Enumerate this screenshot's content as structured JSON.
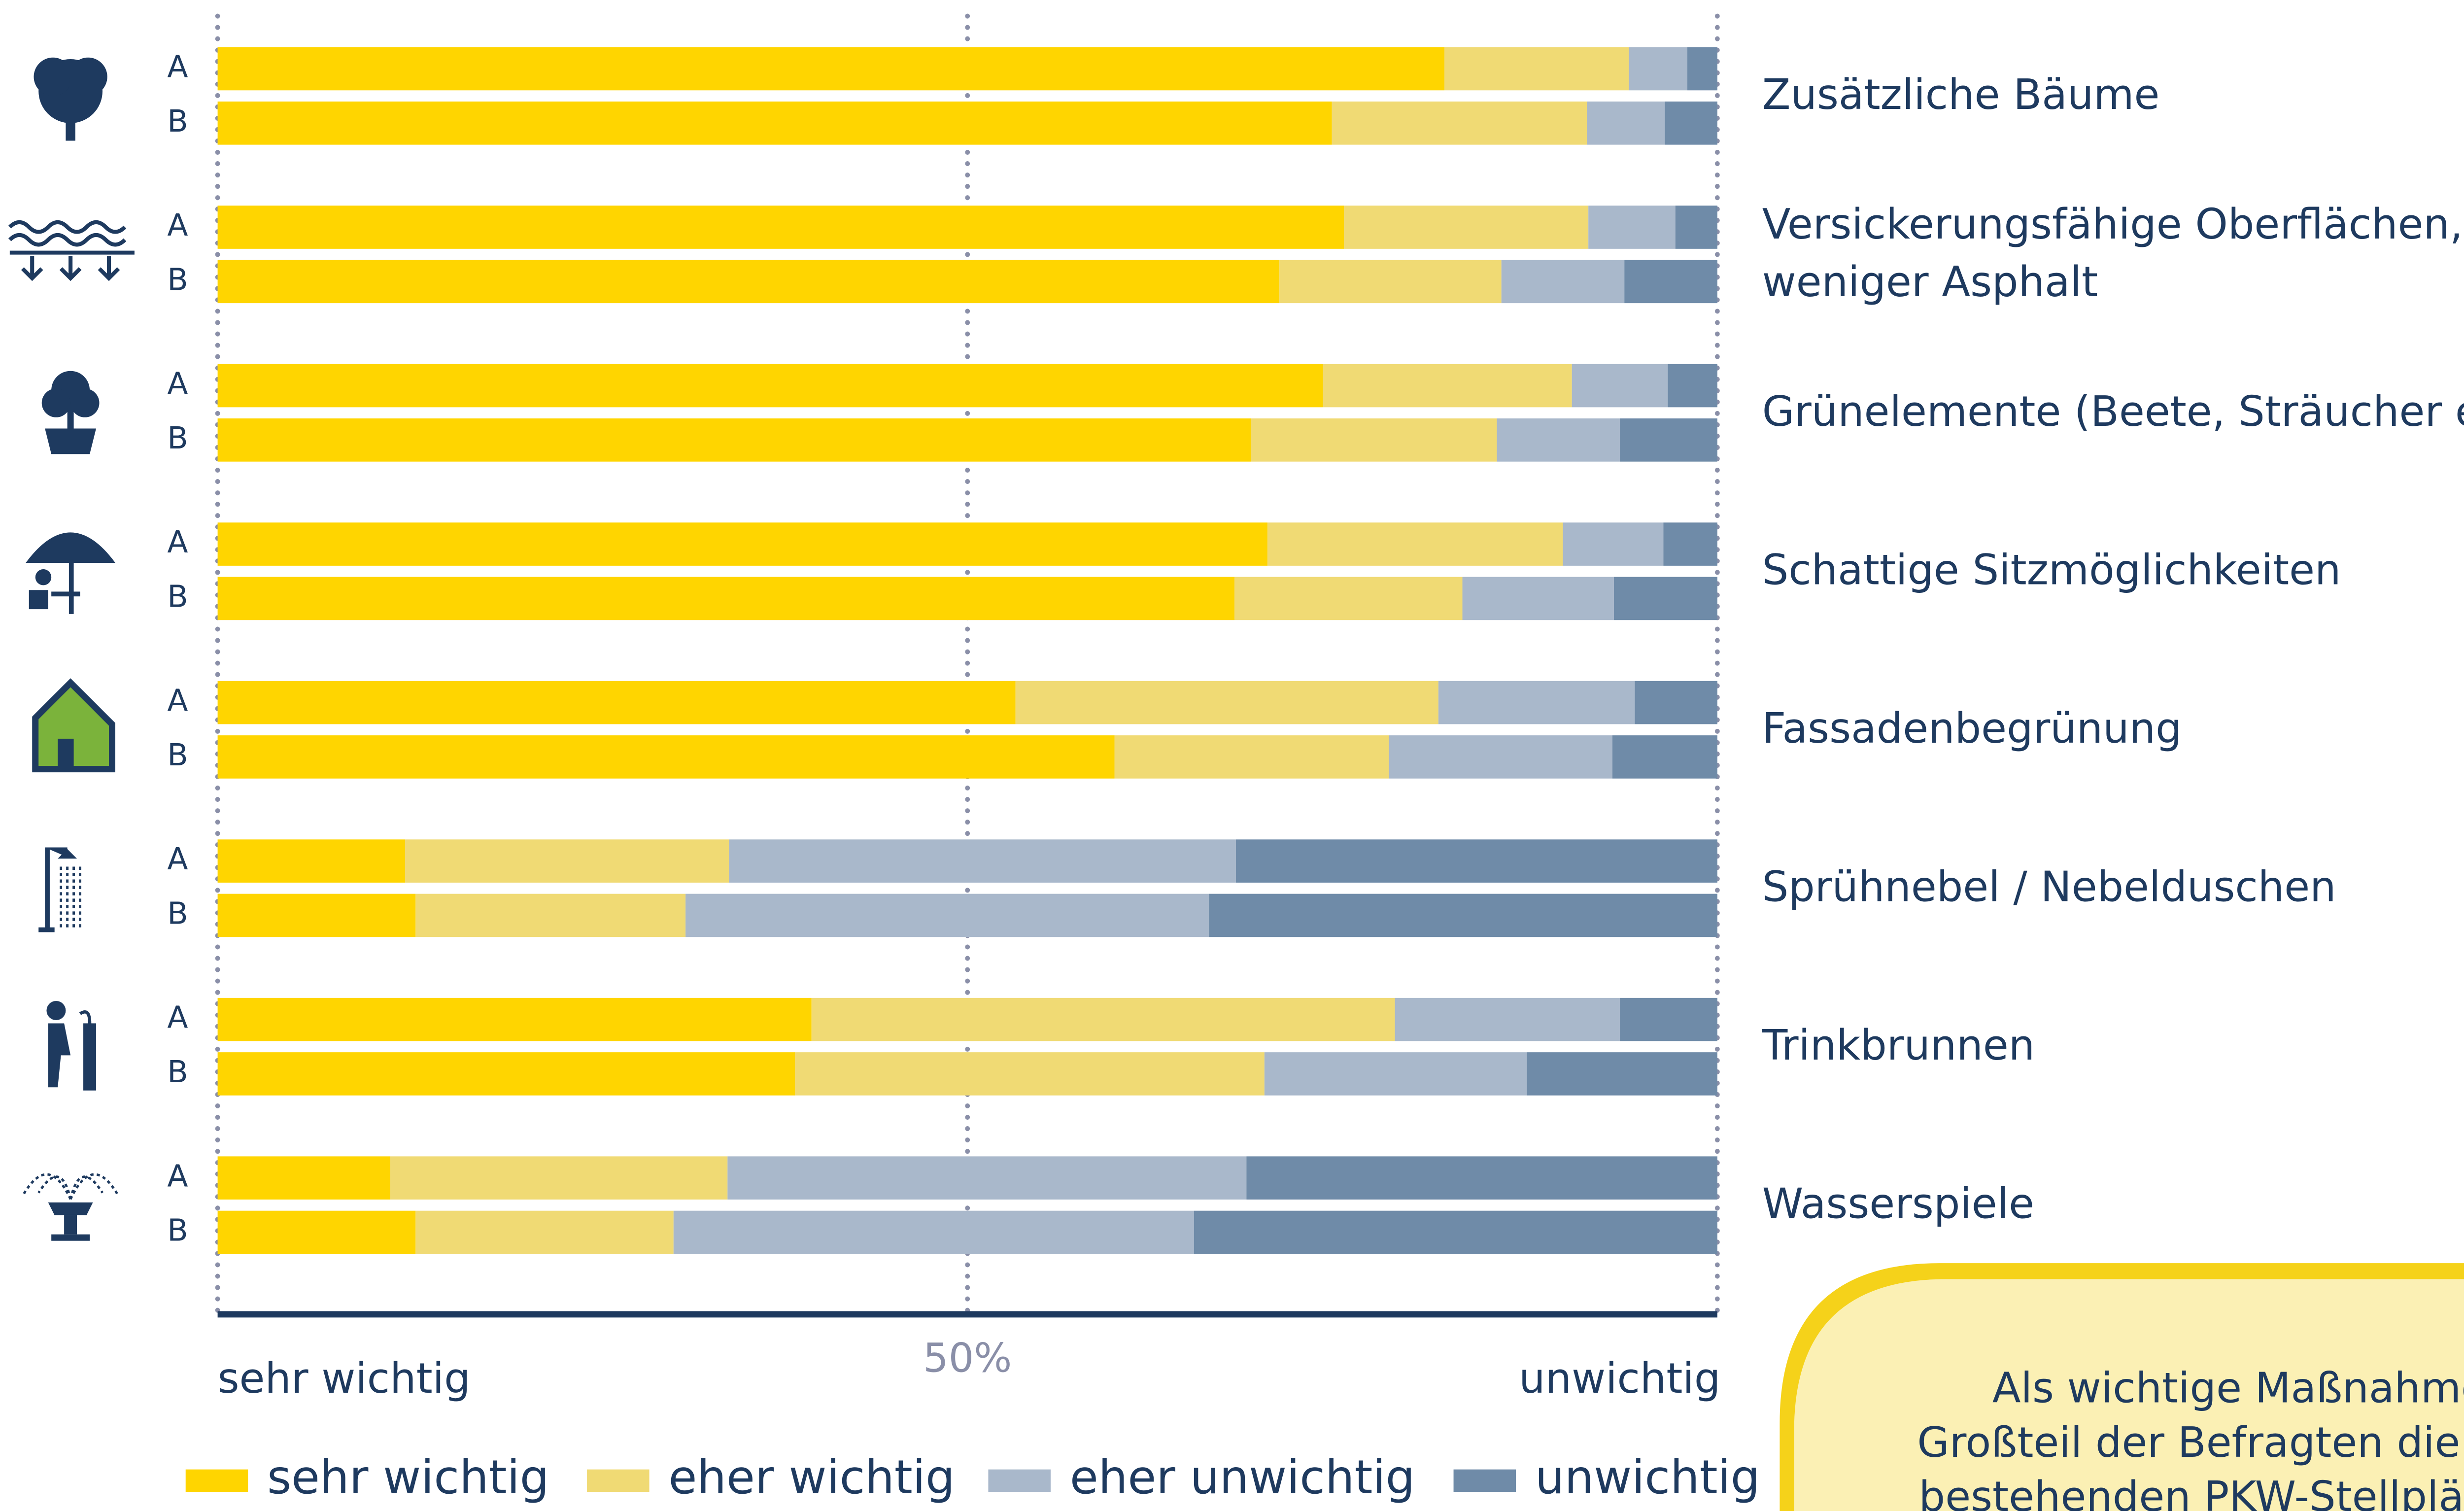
{
  "chart_data": {
    "type": "stacked-bar-horizontal",
    "categories": [
      "Zusätzliche Bäume",
      "Versickerungsfähige Oberflächen,\nweniger Asphalt",
      "Grünelemente (Beete, Sträucher etc.)",
      "Schattige Sitzmöglichkeiten",
      "Fassadenbegrünung",
      "Sprühnebel / Nebelduschen",
      "Trinkbrunnen",
      "Wasserspiele"
    ],
    "subgroups": [
      "A",
      "B"
    ],
    "series": [
      {
        "name": "sehr wichtig",
        "color": "#FFD500",
        "values": [
          [
            81.8,
            74.3
          ],
          [
            75.1,
            70.8
          ],
          [
            73.7,
            68.9
          ],
          [
            70.0,
            67.8
          ],
          [
            53.2,
            59.8
          ],
          [
            12.5,
            13.2
          ],
          [
            39.6,
            38.5
          ],
          [
            11.5,
            13.2
          ]
        ]
      },
      {
        "name": "eher wichtig",
        "color": "#F0DA74",
        "values": [
          [
            12.3,
            17.0
          ],
          [
            16.3,
            14.8
          ],
          [
            16.6,
            16.4
          ],
          [
            19.7,
            15.2
          ],
          [
            28.2,
            18.3
          ],
          [
            21.6,
            18.0
          ],
          [
            38.9,
            31.3
          ],
          [
            22.5,
            17.2
          ]
        ]
      },
      {
        "name": "eher unwichtig",
        "color": "#A9B8CB",
        "values": [
          [
            3.9,
            5.2
          ],
          [
            5.8,
            8.2
          ],
          [
            6.4,
            8.2
          ],
          [
            6.7,
            10.1
          ],
          [
            13.1,
            14.9
          ],
          [
            33.8,
            34.9
          ],
          [
            15.0,
            17.5
          ],
          [
            34.6,
            34.7
          ]
        ]
      },
      {
        "name": "unwichtig",
        "color": "#6F8BA8",
        "values": [
          [
            2.0,
            3.5
          ],
          [
            2.8,
            6.2
          ],
          [
            3.3,
            6.5
          ],
          [
            3.6,
            6.9
          ],
          [
            5.5,
            7.0
          ],
          [
            32.1,
            33.9
          ],
          [
            6.5,
            12.7
          ],
          [
            31.4,
            34.9
          ]
        ]
      }
    ],
    "xlim": [
      0,
      100
    ],
    "xticks": [
      {
        "value": 50,
        "label": "50%"
      }
    ],
    "gridlines": [
      0,
      50,
      100
    ],
    "x_label_left": "sehr wichtig",
    "x_label_right": "unwichtig",
    "legend": "bottom",
    "annotation": [
      "Als wichtige Maßnahme sie",
      "Großteil der Befragten die Red",
      "bestehenden PKW-Stellplätze"
    ]
  }
}
